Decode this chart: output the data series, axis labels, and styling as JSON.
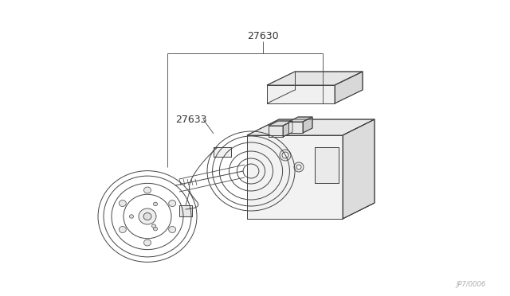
{
  "background_color": "#ffffff",
  "line_color": "#444444",
  "label_color": "#333333",
  "fig_width": 6.4,
  "fig_height": 3.72,
  "dpi": 100,
  "label_27630": "27630",
  "label_27633": "27633",
  "watermark": "JP7/0006"
}
